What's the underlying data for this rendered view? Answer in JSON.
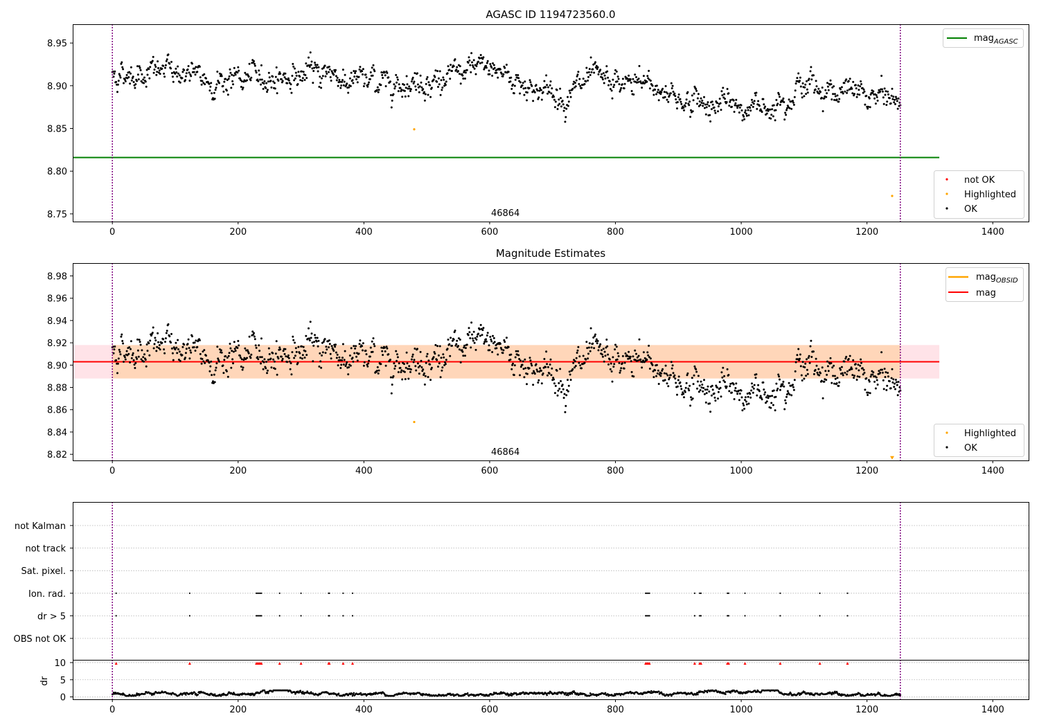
{
  "colors": {
    "ok": "#000000",
    "highlighted": "#ffa500",
    "not_ok": "#ff0000",
    "agasc_line": "#008000",
    "mag_line": "#ff0000",
    "obsid_line": "#ffa500",
    "band_fill": "#ffc0cb",
    "band_fill_obsid": "#ffa500",
    "vline": "#800080",
    "grid": "#b0b0b0"
  },
  "chart_data": [
    {
      "type": "scatter",
      "title": "AGASC ID 1194723560.0",
      "xlim": [
        -63,
        1457
      ],
      "ylim": [
        8.741,
        8.972
      ],
      "xticks": [
        "0",
        "200",
        "400",
        "600",
        "800",
        "1000",
        "1200",
        "1400"
      ],
      "yticks": [
        "8.75",
        "8.80",
        "8.85",
        "8.90",
        "8.95"
      ],
      "obsid_label": "46864",
      "obsid_label_x": 625,
      "vlines_x": [
        0,
        1253
      ],
      "hline": {
        "name": "mag",
        "subscript": "AGASC",
        "y": 8.816,
        "x_range": [
          -63,
          1315
        ]
      },
      "series": [
        {
          "name": "not OK",
          "count": 0
        },
        {
          "name": "Highlighted",
          "points": [
            [
              480,
              8.849
            ],
            [
              1240,
              8.771
            ]
          ]
        },
        {
          "name": "OK",
          "x_range": [
            0,
            1253
          ],
          "count": 1254,
          "envelope": [
            [
              0,
              8.913
            ],
            [
              100,
              8.918
            ],
            [
              150,
              8.905
            ],
            [
              300,
              8.912
            ],
            [
              345,
              8.918
            ],
            [
              375,
              8.905
            ],
            [
              520,
              8.906
            ],
            [
              600,
              8.923
            ],
            [
              660,
              8.9
            ],
            [
              720,
              8.887
            ],
            [
              760,
              8.906
            ],
            [
              800,
              8.9
            ],
            [
              850,
              8.903
            ],
            [
              905,
              8.884
            ],
            [
              940,
              8.88
            ],
            [
              1030,
              8.873
            ],
            [
              1100,
              8.902
            ],
            [
              1150,
              8.894
            ],
            [
              1253,
              8.882
            ]
          ]
        }
      ],
      "legend_upper": "upper-right",
      "legend_lower": "lower-right"
    },
    {
      "type": "scatter",
      "title": "Magnitude Estimates",
      "xlim": [
        -63,
        1457
      ],
      "ylim": [
        8.8145,
        8.9915
      ],
      "xticks": [
        "0",
        "200",
        "400",
        "600",
        "800",
        "1000",
        "1200",
        "1400"
      ],
      "yticks": [
        "8.82",
        "8.84",
        "8.86",
        "8.88",
        "8.90",
        "8.92",
        "8.94",
        "8.96",
        "8.98"
      ],
      "obsid_label": "46864",
      "obsid_label_x": 625,
      "vlines_x": [
        0,
        1253
      ],
      "mag_line": {
        "name": "mag",
        "y": 8.903,
        "band": [
          8.888,
          8.918
        ],
        "x_range": [
          -63,
          1315
        ]
      },
      "obsid_line": {
        "name": "mag",
        "subscript": "OBSID",
        "y": 8.903,
        "band": [
          8.888,
          8.918
        ],
        "x_range": [
          0,
          1253
        ]
      },
      "series": [
        {
          "name": "Highlighted",
          "points": [
            [
              480,
              8.849
            ]
          ],
          "marker": "dot"
        },
        {
          "name": "Highlighted-triangle",
          "points": [
            [
              1240,
              8.8165
            ]
          ],
          "marker": "triangle-down"
        },
        {
          "name": "OK",
          "x_range": [
            0,
            1253
          ],
          "count": 1254
        }
      ],
      "legend_upper": "upper-right",
      "legend_lower": "lower-right"
    },
    {
      "type": "scatter",
      "title": "",
      "xlim": [
        -63,
        1457
      ],
      "xticks": [
        "0",
        "200",
        "400",
        "600",
        "800",
        "1000",
        "1200",
        "1400"
      ],
      "vlines_x": [
        0,
        1253
      ],
      "flag_rows": [
        "not Kalman",
        "not track",
        "Sat. pixel.",
        "Ion. rad.",
        "dr > 5",
        "OBS not OK"
      ],
      "flag_points": {
        "Ion. rad.": [
          6,
          123,
          229,
          231,
          233,
          235,
          237,
          266,
          300,
          344,
          345,
          367,
          382,
          848,
          850,
          852,
          854,
          926,
          934,
          936,
          978,
          980,
          1006,
          1062,
          1125,
          1169
        ],
        "dr > 5": [
          6,
          123,
          229,
          231,
          233,
          235,
          237,
          266,
          300,
          344,
          345,
          367,
          382,
          848,
          850,
          852,
          854,
          926,
          934,
          936,
          978,
          980,
          1006,
          1062,
          1125,
          1169
        ]
      },
      "dr": {
        "ylabel": "dr",
        "yticks": [
          "0",
          "5",
          "10"
        ],
        "ylim": [
          -0.5,
          10
        ],
        "clipped_points_x": [
          6,
          123,
          229,
          231,
          233,
          235,
          237,
          266,
          300,
          344,
          345,
          367,
          382,
          848,
          850,
          852,
          854,
          926,
          934,
          936,
          978,
          980,
          1006,
          1062,
          1125,
          1169
        ],
        "clipped_value": 9.8,
        "baseline_range": [
          0.3,
          1.9
        ]
      }
    }
  ]
}
